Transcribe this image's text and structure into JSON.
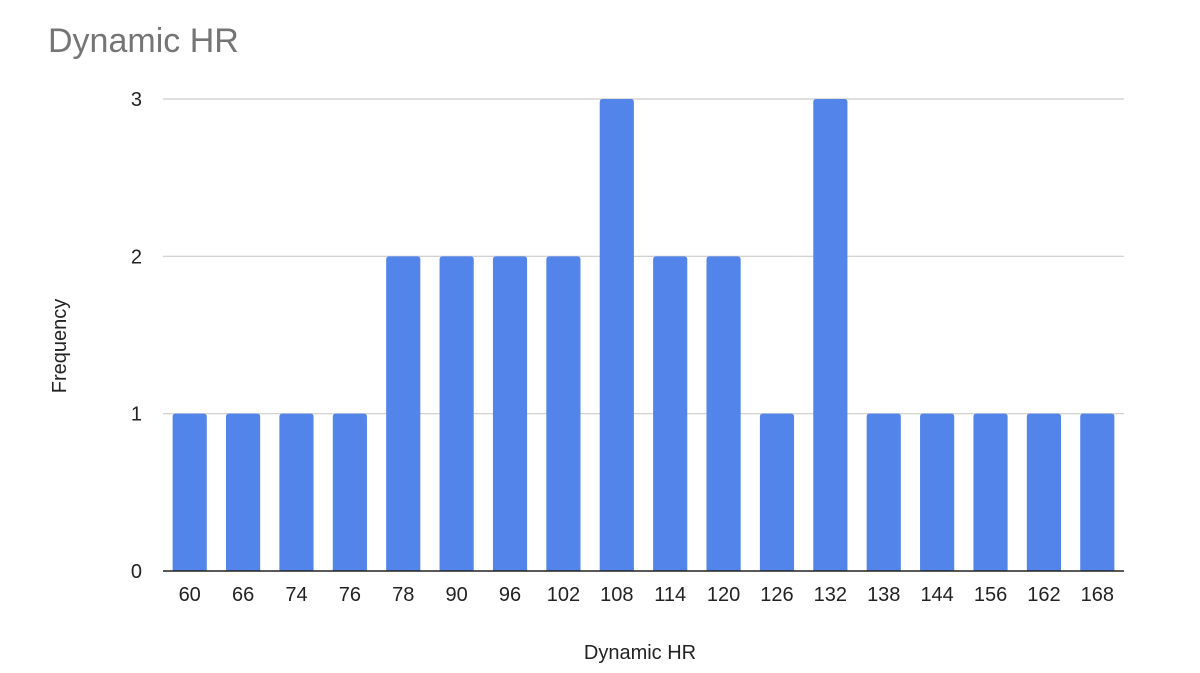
{
  "chart_data": {
    "type": "bar",
    "title": "Dynamic HR",
    "xlabel": "Dynamic HR",
    "ylabel": "Frequency",
    "categories": [
      "60",
      "66",
      "74",
      "76",
      "78",
      "90",
      "96",
      "102",
      "108",
      "114",
      "120",
      "126",
      "132",
      "138",
      "144",
      "156",
      "162",
      "168"
    ],
    "values": [
      1,
      1,
      1,
      1,
      2,
      2,
      2,
      2,
      3,
      2,
      2,
      1,
      3,
      1,
      1,
      1,
      1,
      1
    ],
    "ylim": [
      0,
      3
    ],
    "yticks": [
      "0",
      "1",
      "2",
      "3"
    ],
    "grid": true,
    "legend": "none",
    "bar_color": "#5384ea",
    "grid_color": "#cccccc",
    "axis_color": "#222222"
  }
}
